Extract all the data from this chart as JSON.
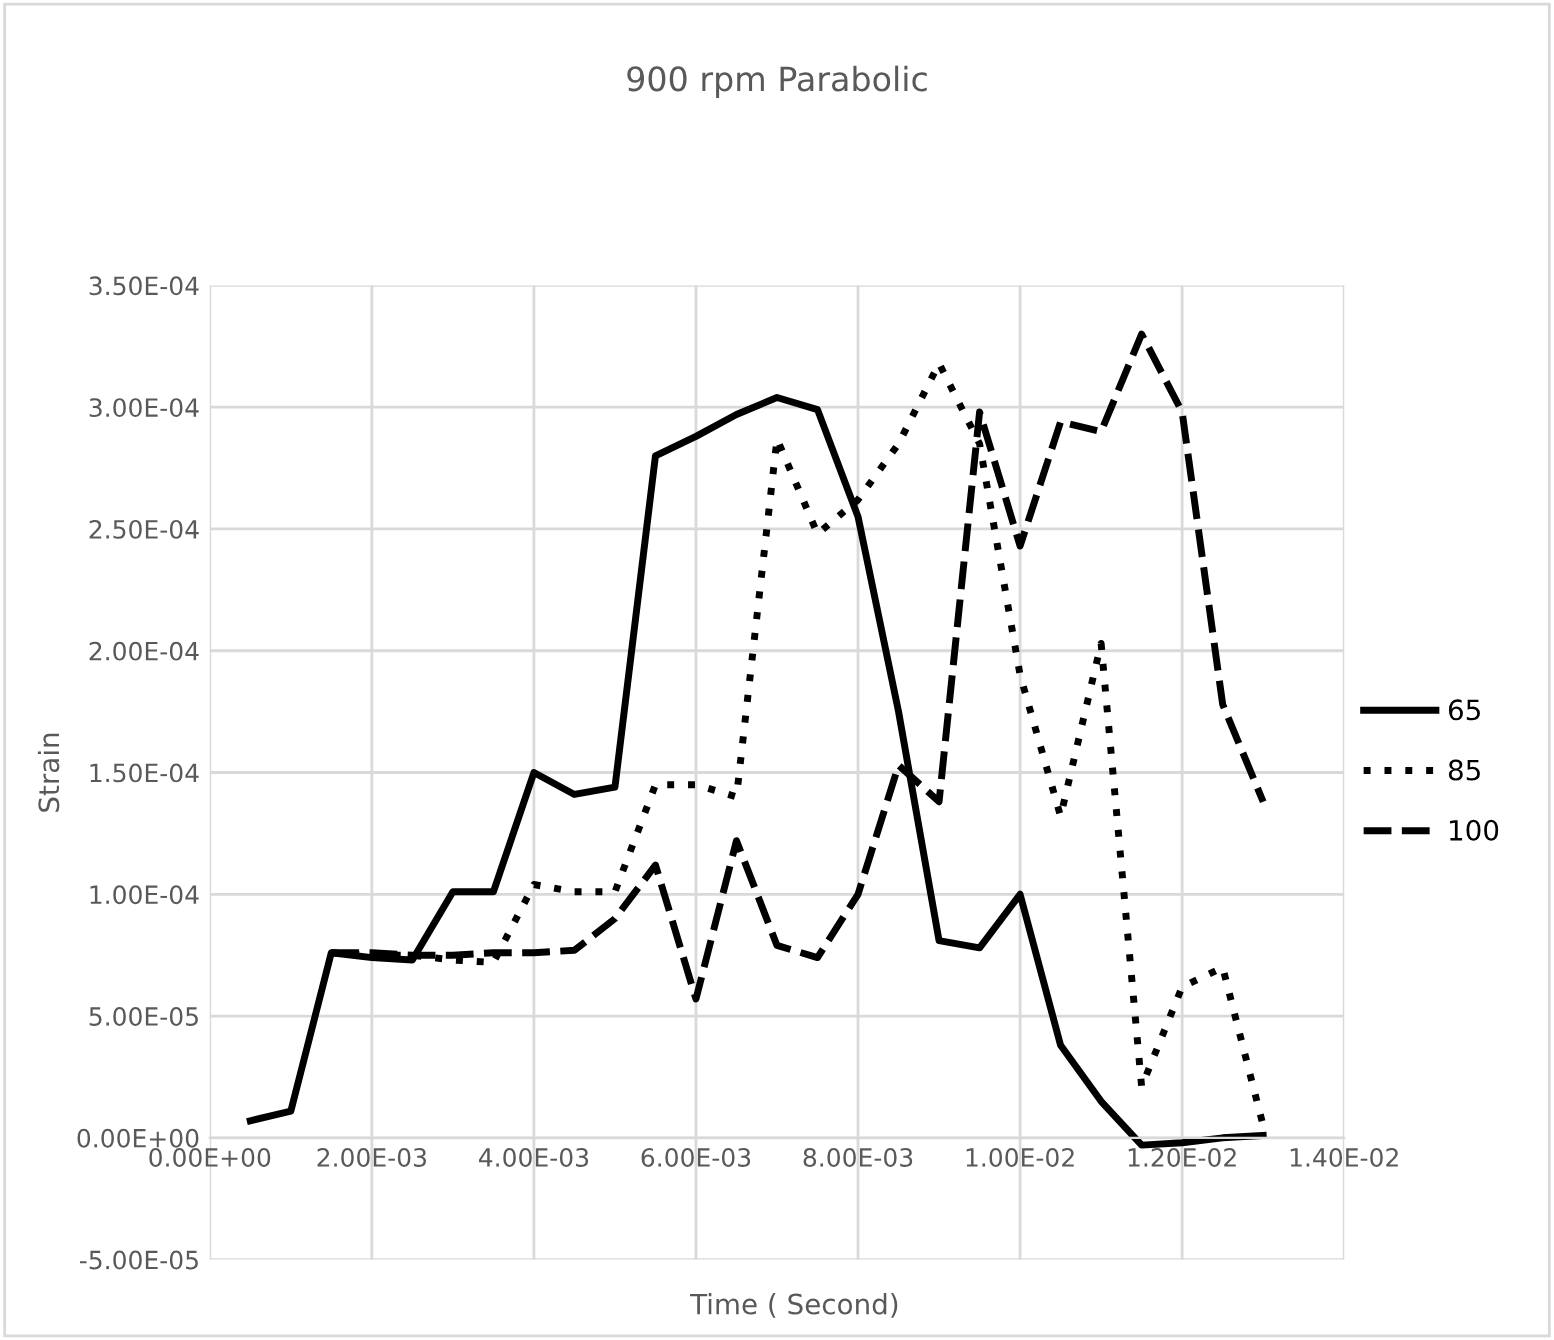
{
  "chart_data": {
    "type": "line",
    "title": "900 rpm Parabolic",
    "xlabel": "Time ( Second)",
    "ylabel": "Strain",
    "x": [
      0.0005,
      0.001,
      0.0015,
      0.002,
      0.0025,
      0.003,
      0.0035,
      0.004,
      0.0045,
      0.005,
      0.0055,
      0.006,
      0.0065,
      0.007,
      0.0075,
      0.008,
      0.0085,
      0.009,
      0.0095,
      0.01,
      0.0105,
      0.011,
      0.0115,
      0.012,
      0.0125,
      0.013
    ],
    "series": [
      {
        "name": "65",
        "color": "#000000",
        "line_style": "solid",
        "values": [
          7e-06,
          1.1e-05,
          7.6e-05,
          7.4e-05,
          7.3e-05,
          0.000101,
          0.000101,
          0.00015,
          0.000141,
          0.000144,
          0.00028,
          0.000288,
          0.000297,
          0.000304,
          0.000299,
          0.000255,
          0.000175,
          8.1e-05,
          7.8e-05,
          0.0001,
          3.8e-05,
          1.5e-05,
          -3e-06,
          -2e-06,
          0,
          1e-06
        ]
      },
      {
        "name": "85",
        "color": "#000000",
        "line_style": "dotted",
        "values": [
          null,
          null,
          7.6e-05,
          7.5e-05,
          7.5e-05,
          7.3e-05,
          7.2e-05,
          0.000104,
          0.000101,
          0.000101,
          0.000145,
          0.000145,
          0.00014,
          0.000287,
          0.000248,
          0.000262,
          0.000285,
          0.000318,
          0.000285,
          0.00019,
          0.000132,
          0.000203,
          2.1e-05,
          6.2e-05,
          7e-05,
          5e-06
        ]
      },
      {
        "name": "100",
        "color": "#000000",
        "line_style": "dashed",
        "values": [
          null,
          null,
          7.6e-05,
          7.6e-05,
          7.5e-05,
          7.5e-05,
          7.6e-05,
          7.6e-05,
          7.7e-05,
          9e-05,
          0.000112,
          5.7e-05,
          0.000122,
          7.9e-05,
          7.4e-05,
          0.0001,
          0.000153,
          0.000138,
          0.000298,
          0.000243,
          0.000294,
          0.00029,
          0.00033,
          0.000298,
          0.000178,
          0.000138
        ]
      }
    ],
    "xlim": [
      0,
      0.014
    ],
    "xticks": [
      {
        "value": 0,
        "label": "0.00E+00"
      },
      {
        "value": 0.002,
        "label": "2.00E-03"
      },
      {
        "value": 0.004,
        "label": "4.00E-03"
      },
      {
        "value": 0.006,
        "label": "6.00E-03"
      },
      {
        "value": 0.008,
        "label": "8.00E-03"
      },
      {
        "value": 0.01,
        "label": "1.00E-02"
      },
      {
        "value": 0.012,
        "label": "1.20E-02"
      },
      {
        "value": 0.014,
        "label": "1.40E-02"
      }
    ],
    "ylim": [
      -5e-05,
      0.00035
    ],
    "yticks": [
      {
        "value": -5e-05,
        "label": "-5.00E-05"
      },
      {
        "value": 0,
        "label": "0.00E+00"
      },
      {
        "value": 5e-05,
        "label": "5.00E-05"
      },
      {
        "value": 0.0001,
        "label": "1.00E-04"
      },
      {
        "value": 0.00015,
        "label": "1.50E-04"
      },
      {
        "value": 0.0002,
        "label": "2.00E-04"
      },
      {
        "value": 0.00025,
        "label": "2.50E-04"
      },
      {
        "value": 0.0003,
        "label": "3.00E-04"
      },
      {
        "value": 0.00035,
        "label": "3.50E-04"
      }
    ],
    "grid": true,
    "legend": "right",
    "marker": "none"
  }
}
